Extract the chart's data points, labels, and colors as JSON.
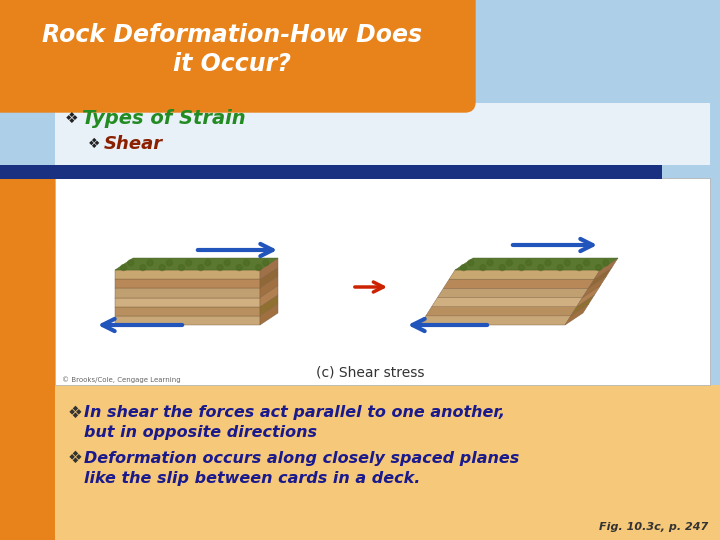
{
  "title_line1": "Rock Deformation-How Does",
  "title_line2": "it Occur?",
  "title_bg_color": "#E8821A",
  "title_text_color": "#FFFFFF",
  "slide_bg_color": "#AECFE8",
  "white_box_color": "#FFFFFF",
  "bullet1_text": "Types of Strain",
  "bullet1_color": "#228B22",
  "bullet2_text": "Shear",
  "bullet2_color": "#8B2000",
  "divider_color": "#1A3080",
  "body_bg_color": "#F5C87A",
  "body_text_color": "#1A1A8C",
  "body_bullet1_line1": "In shear the forces act parallel to one another,",
  "body_bullet1_line2": "but in opposite directions",
  "body_bullet2_line1": "Deformation occurs along closely spaced planes",
  "body_bullet2_line2": "like the slip between cards in a deck.",
  "caption": "(c) Shear stress",
  "copyright": "© Brooks/Cole, Cengage Learning",
  "fig_ref": "Fig. 10.3c, p. 247",
  "orange_left_strip_color": "#E8821A",
  "sky_gradient_top": "#B8D0E8",
  "sky_gradient_bottom": "#D8C8A8"
}
